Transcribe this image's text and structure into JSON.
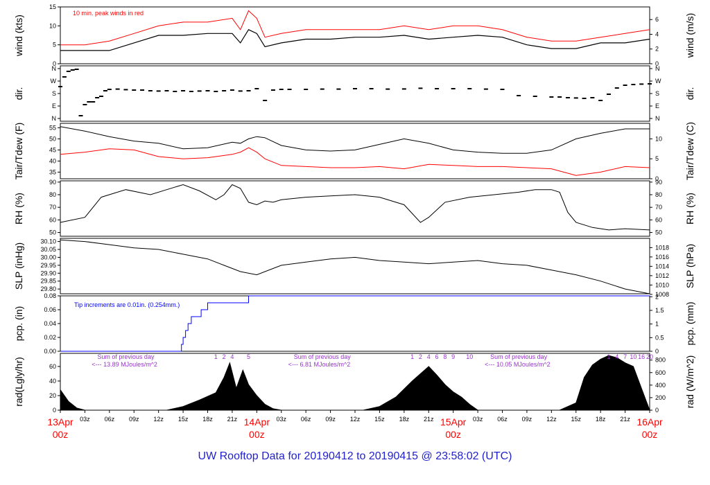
{
  "footer_title": "UW Rooftop Data for 20190412  to  20190415 @ 23:58:02  (UTC)",
  "colors": {
    "peak": "#ff0000",
    "dew": "#ff0000",
    "precip": "#0000ff",
    "annotation": "#9933cc",
    "day": "#ff0000"
  },
  "x_axis": {
    "hour_ticks": [
      "03z",
      "06z",
      "09z",
      "12z",
      "15z",
      "18z",
      "21z",
      "03z",
      "06z",
      "09z",
      "12z",
      "15z",
      "18z",
      "21z",
      "03z",
      "06z",
      "09z",
      "12z",
      "15z",
      "18z",
      "21z"
    ],
    "day_labels": [
      {
        "line1": "13Apr",
        "line2": "00z"
      },
      {
        "line1": "14Apr",
        "line2": "00z"
      },
      {
        "line1": "15Apr",
        "line2": "00z"
      },
      {
        "line1": "16Apr",
        "line2": "00z"
      }
    ]
  },
  "chart_data": [
    {
      "id": "wind",
      "type": "line",
      "ylabel_left": "wind (kts)",
      "ylabel_right": "wind (m/s)",
      "yticks_left": [
        0,
        5,
        10,
        15
      ],
      "yticks_right": [
        0,
        2,
        4,
        6
      ],
      "ylim": [
        0,
        15
      ],
      "annotation": "10 min. peak winds in red",
      "x_hours": [
        0,
        3,
        6,
        9,
        12,
        15,
        18,
        21,
        22,
        23,
        24,
        25,
        27,
        30,
        33,
        36,
        39,
        42,
        45,
        48,
        51,
        54,
        57,
        60,
        63,
        66,
        69,
        72
      ],
      "series": [
        {
          "values": [
            3.5,
            3.5,
            3.5,
            5.5,
            7.5,
            7.5,
            8.0,
            8.0,
            5.5,
            9.0,
            8.0,
            4.5,
            5.5,
            6.5,
            6.5,
            7.0,
            7.0,
            7.5,
            6.5,
            7.0,
            7.5,
            7.0,
            5.0,
            4.0,
            4.0,
            5.5,
            5.5,
            6.5
          ]
        },
        {
          "values": [
            5,
            5,
            6,
            8,
            10,
            11,
            11,
            12,
            9,
            14,
            12,
            7,
            8,
            9,
            9,
            9,
            9,
            10,
            9,
            10,
            10,
            9,
            7,
            6,
            6,
            7,
            8,
            9
          ]
        }
      ]
    },
    {
      "id": "dir",
      "type": "scatter",
      "ylabel": "dir.",
      "ytick_labels": [
        "N",
        "E",
        "S",
        "W",
        "N"
      ],
      "ylim": [
        0,
        360
      ],
      "points_x": [
        0,
        0.5,
        1,
        1.5,
        2,
        2.5,
        3,
        3.5,
        4,
        4.5,
        5,
        5.5,
        6,
        7,
        8,
        9,
        10,
        11,
        12,
        13,
        14,
        15,
        16,
        17,
        18,
        19,
        20,
        21,
        22,
        23,
        24,
        25,
        26,
        27,
        28,
        30,
        32,
        34,
        36,
        38,
        40,
        42,
        44,
        46,
        48,
        50,
        52,
        54,
        56,
        58,
        60,
        61,
        62,
        63,
        64,
        65,
        66,
        67,
        68,
        69,
        70,
        71,
        72
      ],
      "points_y": [
        230,
        300,
        340,
        350,
        355,
        20,
        100,
        120,
        120,
        150,
        160,
        200,
        210,
        212,
        208,
        205,
        205,
        200,
        198,
        200,
        195,
        200,
        195,
        198,
        200,
        195,
        200,
        205,
        198,
        200,
        215,
        130,
        205,
        210,
        210,
        210,
        212,
        212,
        215,
        215,
        212,
        213,
        218,
        215,
        215,
        215,
        212,
        210,
        165,
        160,
        155,
        155,
        150,
        148,
        145,
        150,
        130,
        175,
        220,
        240,
        245,
        248,
        250
      ]
    },
    {
      "id": "temp",
      "type": "line",
      "ylabel_left": "Tair/Tdew (F)",
      "ylabel_right": "Tair/Tdew (C)",
      "yticks_left": [
        35,
        40,
        45,
        50,
        55
      ],
      "yticks_right": [
        0,
        5,
        10
      ],
      "ylim": [
        32,
        57
      ],
      "x_hours": [
        0,
        3,
        6,
        9,
        12,
        15,
        18,
        21,
        22,
        23,
        24,
        25,
        27,
        30,
        33,
        36,
        39,
        42,
        45,
        48,
        51,
        54,
        57,
        60,
        63,
        66,
        69,
        72
      ],
      "series": [
        {
          "values": [
            55.5,
            53.5,
            51,
            49,
            48,
            45.5,
            46,
            48.5,
            48,
            50,
            51,
            50.5,
            47,
            45,
            44.5,
            45,
            47.5,
            50,
            48,
            45,
            44,
            43.5,
            43.5,
            45,
            50,
            52.5,
            54.5,
            54.5
          ]
        },
        {
          "values": [
            43,
            44,
            45.5,
            45,
            42,
            41,
            41.5,
            43,
            44,
            46,
            44,
            41,
            38,
            37.5,
            37,
            37,
            37.5,
            36.5,
            38.5,
            38,
            37.5,
            37.5,
            37,
            36.5,
            33.5,
            35,
            37.5,
            37
          ]
        }
      ]
    },
    {
      "id": "rh",
      "type": "line",
      "ylabel_left": "RH (%)",
      "ylabel_right": "RH (%)",
      "yticks": [
        50,
        60,
        70,
        80,
        90
      ],
      "ylim": [
        47,
        91
      ],
      "x_hours": [
        0,
        3,
        5,
        8,
        11,
        13,
        15,
        17,
        19,
        20,
        21,
        22,
        23,
        24,
        25,
        26,
        27,
        30,
        33,
        36,
        39,
        42,
        44,
        45,
        47,
        50,
        53,
        56,
        58,
        60,
        61,
        62,
        63,
        65,
        67,
        69,
        72
      ],
      "series": [
        {
          "values": [
            58,
            62,
            78,
            84,
            80,
            84,
            88,
            83,
            76,
            80,
            88,
            85,
            74,
            72,
            75,
            74,
            76,
            78,
            79,
            80,
            78,
            72,
            58,
            62,
            74,
            78,
            80,
            82,
            84,
            84,
            82,
            66,
            58,
            54,
            52,
            53,
            52
          ]
        }
      ]
    },
    {
      "id": "slp",
      "type": "line",
      "ylabel_left": "SLP (inHg)",
      "ylabel_right": "SLP (hPa)",
      "yticks_left": [
        29.8,
        29.85,
        29.9,
        29.95,
        30.0,
        30.05,
        30.1
      ],
      "yticks_right": [
        1008,
        1010,
        1012,
        1014,
        1016,
        1018
      ],
      "ylim": [
        29.77,
        30.12
      ],
      "x_hours": [
        0,
        3,
        6,
        9,
        12,
        15,
        18,
        20,
        22,
        24,
        27,
        30,
        33,
        36,
        39,
        42,
        45,
        48,
        51,
        54,
        57,
        60,
        63,
        66,
        69,
        72
      ],
      "series": [
        {
          "values": [
            30.11,
            30.1,
            30.08,
            30.06,
            30.05,
            30.02,
            29.99,
            29.95,
            29.91,
            29.89,
            29.95,
            29.97,
            29.99,
            30.0,
            29.98,
            29.97,
            29.96,
            29.97,
            29.98,
            29.96,
            29.95,
            29.92,
            29.89,
            29.85,
            29.8,
            29.77
          ]
        }
      ]
    },
    {
      "id": "pcp",
      "type": "line",
      "ylabel_left": "pcp. (in)",
      "ylabel_right": "pcp. (mm)",
      "yticks_left": [
        0.0,
        0.02,
        0.04,
        0.06,
        0.08
      ],
      "yticks_right": [
        0,
        0.5,
        1,
        1.5,
        2
      ],
      "ylim": [
        0,
        0.08
      ],
      "annotation": "Tip increments are 0.01in. (0.254mm.)",
      "x_hours": [
        0,
        14.5,
        14.8,
        15,
        15.3,
        15.6,
        16,
        16.5,
        17.2,
        18,
        20,
        22,
        23,
        72
      ],
      "series": [
        {
          "values": [
            0,
            0,
            0.01,
            0.02,
            0.03,
            0.04,
            0.05,
            0.05,
            0.06,
            0.07,
            0.07,
            0.07,
            0.08,
            0.08
          ]
        }
      ]
    },
    {
      "id": "rad",
      "type": "area",
      "ylabel_left": "rad(Lgly/hr)",
      "ylabel_right": "rad (W/m^2)",
      "yticks_left": [
        0,
        20,
        40,
        60
      ],
      "yticks_right": [
        0,
        200,
        400,
        600,
        800
      ],
      "ylim": [
        0,
        78
      ],
      "annotations": [
        {
          "line1": "Sum of previous day",
          "line2": "<--- 13.89 MJoules/m^2",
          "hour": 3
        },
        {
          "line1": "Sum of previous day",
          "line2": "<--- 6.81 MJoules/m^2",
          "hour": 27
        },
        {
          "line1": "Sum of previous day",
          "line2": "<--- 10.05 MJoules/m^2",
          "hour": 51
        }
      ],
      "hour_markers": [
        {
          "label": "1",
          "hour": 19
        },
        {
          "label": "2",
          "hour": 20
        },
        {
          "label": "4",
          "hour": 21
        },
        {
          "label": "5",
          "hour": 23
        },
        {
          "label": "1",
          "hour": 43
        },
        {
          "label": "2",
          "hour": 44
        },
        {
          "label": "4",
          "hour": 45
        },
        {
          "label": "6",
          "hour": 46
        },
        {
          "label": "8",
          "hour": 47
        },
        {
          "label": "9",
          "hour": 48
        },
        {
          "label": "10",
          "hour": 50
        },
        {
          "label": "1",
          "hour": 67
        },
        {
          "label": "4",
          "hour": 68
        },
        {
          "label": "7",
          "hour": 69
        },
        {
          "label": "10",
          "hour": 70
        },
        {
          "label": "16",
          "hour": 71
        },
        {
          "label": "20",
          "hour": 72
        }
      ],
      "x_hours": [
        0,
        1,
        2,
        3,
        13,
        15,
        17,
        19,
        20,
        20.7,
        21.5,
        22.3,
        23,
        24,
        25,
        26,
        27,
        37,
        39,
        41,
        43,
        45,
        46,
        47,
        48,
        49,
        50,
        51,
        61,
        63,
        64,
        65,
        66,
        67,
        68,
        69,
        70,
        71,
        72
      ],
      "series": [
        {
          "values": [
            28,
            12,
            3,
            0,
            0,
            5,
            14,
            24,
            45,
            65,
            30,
            55,
            35,
            20,
            8,
            2,
            0,
            0,
            5,
            18,
            40,
            60,
            48,
            35,
            25,
            18,
            8,
            0,
            0,
            10,
            45,
            62,
            70,
            75,
            72,
            65,
            60,
            30,
            0
          ]
        }
      ]
    }
  ]
}
